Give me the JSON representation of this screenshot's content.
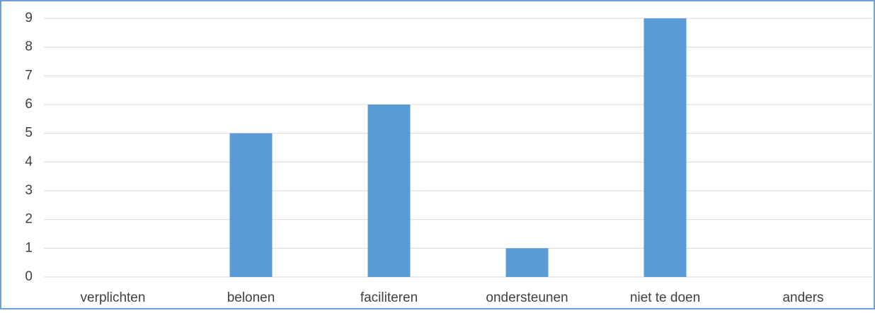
{
  "chart_data": {
    "type": "bar",
    "categories": [
      "verplichten",
      "belonen",
      "faciliteren",
      "ondersteunen",
      "niet te doen",
      "anders"
    ],
    "values": [
      0,
      5,
      6,
      1,
      9,
      0
    ],
    "color": "#5b9bd5",
    "ylim": [
      0,
      9
    ],
    "yticks": [
      0,
      1,
      2,
      3,
      4,
      5,
      6,
      7,
      8,
      9
    ],
    "grid": true
  }
}
